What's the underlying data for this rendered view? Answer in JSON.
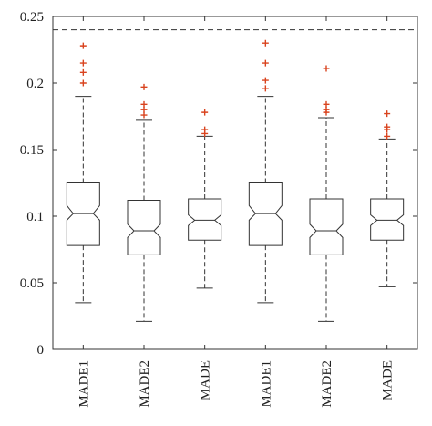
{
  "chart_data": {
    "type": "box",
    "title": "",
    "xlabel": "",
    "ylabel": "",
    "ylim": [
      0,
      0.25
    ],
    "yticks": [
      0,
      0.05,
      0.1,
      0.15,
      0.2,
      0.25
    ],
    "ytick_labels": [
      "0",
      "0.05",
      "0.1",
      "0.15",
      "0.2",
      "0.25"
    ],
    "categories": [
      "MADE1",
      "MADE2",
      "MADE",
      "MADE1",
      "MADE2",
      "MADE"
    ],
    "notched": true,
    "reference_line": {
      "y": 0.24,
      "style": "dashed",
      "color": "#333333"
    },
    "boxes": [
      {
        "whisker_low": 0.035,
        "q1": 0.078,
        "notch_low": 0.097,
        "median": 0.102,
        "notch_high": 0.108,
        "q3": 0.125,
        "whisker_high": 0.19,
        "outliers": [
          0.2,
          0.208,
          0.215,
          0.228
        ]
      },
      {
        "whisker_low": 0.021,
        "q1": 0.071,
        "notch_low": 0.084,
        "median": 0.089,
        "notch_high": 0.094,
        "q3": 0.112,
        "whisker_high": 0.172,
        "outliers": [
          0.176,
          0.18,
          0.184,
          0.197
        ]
      },
      {
        "whisker_low": 0.046,
        "q1": 0.082,
        "notch_low": 0.093,
        "median": 0.097,
        "notch_high": 0.101,
        "q3": 0.113,
        "whisker_high": 0.16,
        "outliers": [
          0.162,
          0.165,
          0.178
        ]
      },
      {
        "whisker_low": 0.035,
        "q1": 0.078,
        "notch_low": 0.097,
        "median": 0.102,
        "notch_high": 0.108,
        "q3": 0.125,
        "whisker_high": 0.19,
        "outliers": [
          0.196,
          0.202,
          0.215,
          0.23
        ]
      },
      {
        "whisker_low": 0.021,
        "q1": 0.071,
        "notch_low": 0.084,
        "median": 0.089,
        "notch_high": 0.094,
        "q3": 0.113,
        "whisker_high": 0.174,
        "outliers": [
          0.178,
          0.18,
          0.184,
          0.211
        ]
      },
      {
        "whisker_low": 0.047,
        "q1": 0.082,
        "notch_low": 0.093,
        "median": 0.097,
        "notch_high": 0.101,
        "q3": 0.113,
        "whisker_high": 0.158,
        "outliers": [
          0.16,
          0.165,
          0.167,
          0.177
        ]
      }
    ],
    "colors": {
      "box": "#333333",
      "outlier": "#d9431e",
      "axis": "#333333"
    },
    "grid": false,
    "legend": "none"
  }
}
